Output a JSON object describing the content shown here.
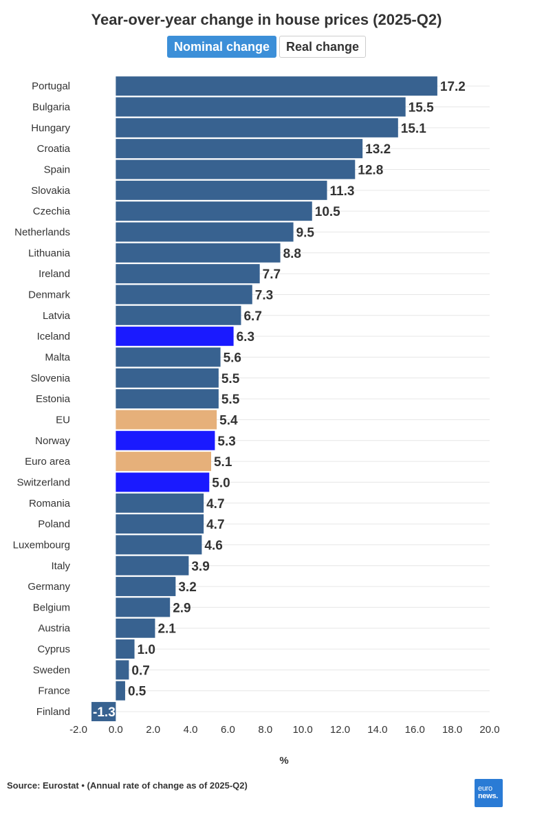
{
  "title": "Year-over-year change in house prices (2025-Q2)",
  "toggle": {
    "nominal_label": "Nominal change",
    "real_label": "Real change",
    "active": "nominal"
  },
  "source": "Source: Eurostat • (Annual rate of change as of 2025-Q2)",
  "logo": {
    "line1": "euro",
    "line2": "news."
  },
  "colors": {
    "country": "#386290",
    "eu": "#e6b07a",
    "highlight": "#1a1aff"
  },
  "chart_data": {
    "type": "bar",
    "orientation": "horizontal",
    "title": "Year-over-year change in house prices (2025-Q2)",
    "xlabel": "%",
    "xlim": [
      -2.0,
      20.0
    ],
    "xticks": [
      "-2.0",
      "0.0",
      "2.0",
      "4.0",
      "6.0",
      "8.0",
      "10.0",
      "12.0",
      "14.0",
      "16.0",
      "18.0",
      "20.0"
    ],
    "categories": [
      "Portugal",
      "Bulgaria",
      "Hungary",
      "Croatia",
      "Spain",
      "Slovakia",
      "Czechia",
      "Netherlands",
      "Lithuania",
      "Ireland",
      "Denmark",
      "Latvia",
      "Iceland",
      "Malta",
      "Slovenia",
      "Estonia",
      "EU",
      "Norway",
      "Euro area",
      "Switzerland",
      "Romania",
      "Poland",
      "Luxembourg",
      "Italy",
      "Germany",
      "Belgium",
      "Austria",
      "Cyprus",
      "Sweden",
      "France",
      "Finland"
    ],
    "values": [
      17.2,
      15.5,
      15.1,
      13.2,
      12.8,
      11.3,
      10.5,
      9.5,
      8.8,
      7.7,
      7.3,
      6.7,
      6.3,
      5.6,
      5.5,
      5.5,
      5.4,
      5.3,
      5.1,
      5.0,
      4.7,
      4.7,
      4.6,
      3.9,
      3.2,
      2.9,
      2.1,
      1.0,
      0.7,
      0.5,
      -1.3
    ],
    "labels": [
      "17.2",
      "15.5",
      "15.1",
      "13.2",
      "12.8",
      "11.3",
      "10.5",
      "9.5",
      "8.8",
      "7.7",
      "7.3",
      "6.7",
      "6.3",
      "5.6",
      "5.5",
      "5.5",
      "5.4",
      "5.3",
      "5.1",
      "5.0",
      "4.7",
      "4.7",
      "4.6",
      "3.9",
      "3.2",
      "2.9",
      "2.1",
      "1.0",
      "0.7",
      "0.5",
      "-1.3"
    ],
    "groups": [
      "country",
      "country",
      "country",
      "country",
      "country",
      "country",
      "country",
      "country",
      "country",
      "country",
      "country",
      "country",
      "highlight",
      "country",
      "country",
      "country",
      "eu",
      "highlight",
      "eu",
      "highlight",
      "country",
      "country",
      "country",
      "country",
      "country",
      "country",
      "country",
      "country",
      "country",
      "country",
      "country"
    ],
    "grid": true
  }
}
